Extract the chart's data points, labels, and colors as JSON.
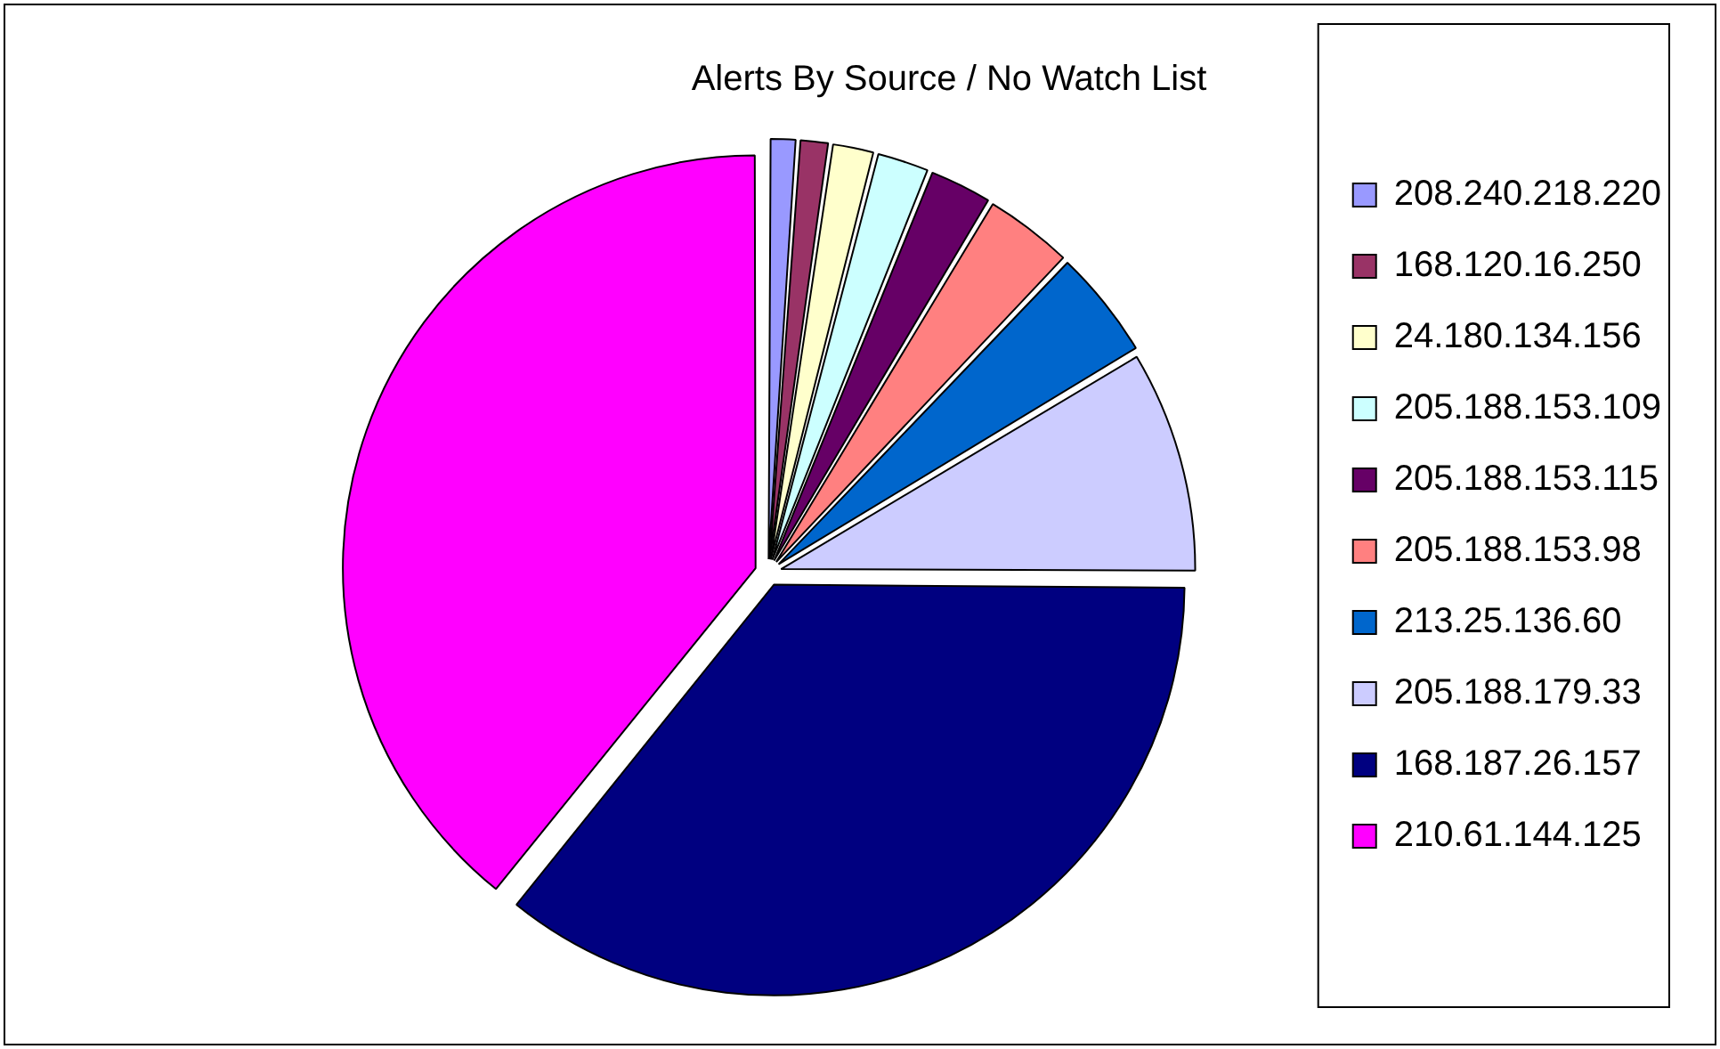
{
  "chart_data": {
    "type": "pie",
    "title": "Alerts By Source / No Watch List",
    "categories": [
      "208.240.218.220",
      "168.120.16.250",
      "24.180.134.156",
      "205.188.153.109",
      "205.188.153.115",
      "205.188.153.98",
      "213.25.136.60",
      "205.188.179.33",
      "168.187.26.157",
      "210.61.144.125"
    ],
    "values": [
      1.1,
      1.2,
      1.7,
      2.1,
      2.5,
      3.5,
      4.3,
      8.7,
      35.7,
      39.2
    ],
    "colors": [
      "#9999ff",
      "#993366",
      "#ffffcc",
      "#ccffff",
      "#660066",
      "#ff8080",
      "#0066cc",
      "#ccccff",
      "#000080",
      "#ff00ff"
    ],
    "legend": "right"
  }
}
